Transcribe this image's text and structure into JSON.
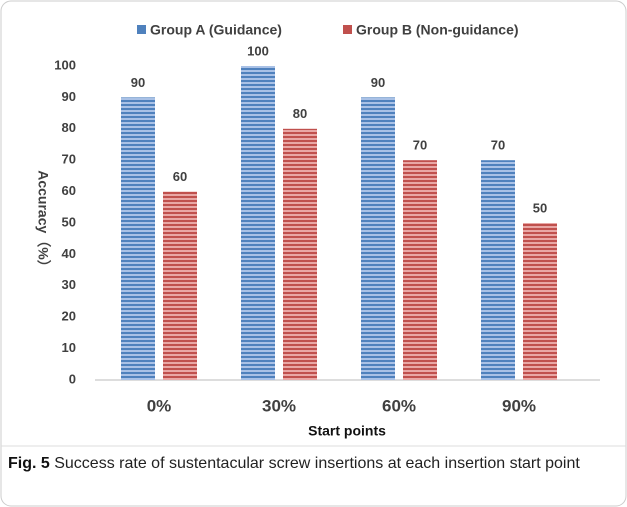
{
  "chart_data": {
    "type": "bar",
    "categories": [
      "0%",
      "30%",
      "60%",
      "90%"
    ],
    "series": [
      {
        "name": "Group A (Guidance)",
        "color": "#4f81bd",
        "values": [
          90,
          100,
          90,
          70
        ]
      },
      {
        "name": "Group B (Non-guidance)",
        "color": "#c0504d",
        "values": [
          60,
          80,
          70,
          50
        ]
      }
    ],
    "ylim": [
      0,
      100
    ],
    "yticks": [
      0,
      10,
      20,
      30,
      40,
      50,
      60,
      70,
      80,
      90,
      100
    ],
    "y_label": "Accuracy（%）",
    "x_label": "Start points",
    "legend": "top",
    "grid": false
  },
  "caption": {
    "label": "Fig. 5",
    "text": "Success rate of sustentacular screw insertions at each insertion start point"
  }
}
